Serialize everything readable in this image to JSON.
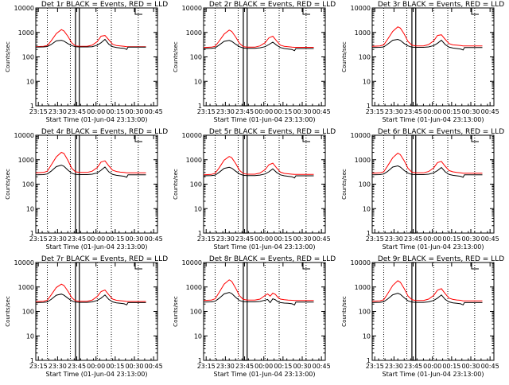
{
  "chart_data": {
    "type": "line",
    "grid": false,
    "x_tick_labels": [
      "23:15",
      "23:30",
      "23:45",
      "00:00",
      "00:15",
      "00:30",
      "00:45"
    ],
    "xlabel": "Start Time (01-Jun-04 23:13:00)",
    "ylabel": "Counts/sec",
    "y_scale": "log",
    "ylim": [
      1,
      10000
    ],
    "y_tick_labels": [
      "1",
      "10",
      "100",
      "1000",
      "10000"
    ],
    "x_minutes_of_ticks": [
      2,
      17,
      32,
      47,
      62,
      77,
      92
    ],
    "xlim_minutes": [
      0,
      95
    ],
    "dotted_lines_minutes": [
      9,
      27,
      48,
      59,
      80
    ],
    "solid_box_minutes": [
      31,
      34
    ],
    "series_colors": {
      "events": "#000000",
      "lld": "#ff0000"
    },
    "panels": [
      {
        "title": "Det 1r BLACK = Events, RED = LLD",
        "x": [
          0,
          6,
          9,
          12,
          16,
          20,
          22,
          25,
          28,
          31,
          34,
          40,
          44,
          48,
          51,
          54,
          57,
          60,
          63,
          66,
          69,
          71,
          72,
          75,
          78,
          81,
          84,
          86
        ],
        "events": [
          250,
          255,
          265,
          320,
          450,
          480,
          440,
          350,
          290,
          260,
          255,
          255,
          260,
          300,
          380,
          520,
          330,
          260,
          240,
          230,
          225,
          200,
          250,
          250,
          250,
          250,
          250,
          250
        ],
        "lld": [
          260,
          270,
          290,
          450,
          900,
          1300,
          1150,
          700,
          380,
          280,
          270,
          270,
          300,
          420,
          700,
          750,
          500,
          330,
          290,
          280,
          270,
          260,
          260,
          260,
          260,
          260,
          260,
          260
        ]
      },
      {
        "title": "Det 2r BLACK = Events, RED = LLD",
        "x": [
          0,
          6,
          9,
          12,
          16,
          20,
          22,
          25,
          28,
          31,
          34,
          40,
          44,
          48,
          51,
          54,
          57,
          60,
          63,
          66,
          69,
          71,
          72,
          75,
          78,
          81,
          84,
          86
        ],
        "events": [
          220,
          225,
          235,
          300,
          430,
          470,
          430,
          330,
          260,
          230,
          225,
          225,
          235,
          260,
          320,
          400,
          300,
          240,
          220,
          210,
          200,
          180,
          220,
          220,
          220,
          220,
          220,
          220
        ],
        "lld": [
          240,
          250,
          270,
          430,
          850,
          1250,
          1100,
          650,
          360,
          260,
          250,
          250,
          280,
          380,
          600,
          700,
          450,
          300,
          270,
          260,
          250,
          245,
          245,
          245,
          245,
          245,
          245,
          245
        ]
      },
      {
        "title": "Det 3r BLACK = Events, RED = LLD",
        "x": [
          0,
          6,
          9,
          12,
          16,
          20,
          22,
          25,
          28,
          31,
          34,
          40,
          44,
          48,
          51,
          54,
          57,
          60,
          63,
          66,
          69,
          71,
          72,
          75,
          78,
          81,
          84,
          86
        ],
        "events": [
          240,
          245,
          255,
          330,
          480,
          520,
          470,
          350,
          280,
          250,
          245,
          245,
          255,
          290,
          360,
          480,
          320,
          250,
          230,
          220,
          210,
          190,
          240,
          240,
          240,
          240,
          240,
          240
        ],
        "lld": [
          270,
          280,
          310,
          520,
          1100,
          1700,
          1500,
          850,
          420,
          300,
          280,
          280,
          320,
          450,
          750,
          800,
          520,
          350,
          310,
          300,
          290,
          280,
          280,
          280,
          280,
          280,
          280,
          280
        ]
      },
      {
        "title": "Det 4r BLACK = Events, RED = LLD",
        "x": [
          0,
          6,
          9,
          12,
          16,
          20,
          22,
          25,
          28,
          31,
          34,
          40,
          44,
          48,
          51,
          54,
          57,
          60,
          63,
          66,
          69,
          71,
          72,
          75,
          78,
          81,
          84,
          86
        ],
        "events": [
          240,
          245,
          260,
          340,
          520,
          600,
          540,
          380,
          280,
          250,
          245,
          245,
          255,
          290,
          370,
          500,
          320,
          250,
          230,
          220,
          210,
          190,
          240,
          240,
          240,
          240,
          240,
          240
        ],
        "lld": [
          290,
          300,
          340,
          600,
          1300,
          2000,
          1800,
          950,
          450,
          320,
          300,
          300,
          340,
          480,
          800,
          900,
          560,
          370,
          330,
          310,
          300,
          290,
          290,
          290,
          290,
          290,
          290,
          290
        ]
      },
      {
        "title": "Det 5r BLACK = Events, RED = LLD",
        "x": [
          0,
          6,
          9,
          12,
          16,
          20,
          22,
          25,
          28,
          31,
          34,
          40,
          44,
          48,
          51,
          54,
          57,
          60,
          63,
          66,
          69,
          71,
          72,
          75,
          78,
          81,
          84,
          86
        ],
        "events": [
          220,
          225,
          235,
          300,
          440,
          490,
          450,
          340,
          260,
          230,
          225,
          225,
          235,
          260,
          320,
          420,
          300,
          240,
          220,
          210,
          200,
          180,
          220,
          220,
          220,
          220,
          220,
          220
        ],
        "lld": [
          240,
          250,
          280,
          450,
          950,
          1350,
          1200,
          700,
          370,
          270,
          255,
          255,
          285,
          390,
          620,
          720,
          460,
          310,
          275,
          265,
          255,
          250,
          250,
          250,
          250,
          250,
          250,
          250
        ]
      },
      {
        "title": "Det 6r BLACK = Events, RED = LLD",
        "x": [
          0,
          6,
          9,
          12,
          16,
          20,
          22,
          25,
          28,
          31,
          34,
          40,
          44,
          48,
          51,
          54,
          57,
          60,
          63,
          66,
          69,
          71,
          72,
          75,
          78,
          81,
          84,
          86
        ],
        "events": [
          240,
          245,
          260,
          330,
          500,
          560,
          500,
          360,
          280,
          250,
          245,
          245,
          255,
          290,
          360,
          480,
          320,
          250,
          230,
          220,
          210,
          190,
          240,
          240,
          240,
          240,
          240,
          240
        ],
        "lld": [
          280,
          290,
          320,
          550,
          1200,
          1850,
          1600,
          900,
          440,
          310,
          290,
          290,
          330,
          460,
          760,
          850,
          540,
          360,
          320,
          300,
          290,
          280,
          280,
          280,
          280,
          280,
          280,
          280
        ]
      },
      {
        "title": "Det 7r BLACK = Events, RED = LLD",
        "x": [
          0,
          6,
          9,
          12,
          16,
          20,
          22,
          25,
          28,
          31,
          34,
          40,
          44,
          48,
          51,
          54,
          57,
          60,
          63,
          66,
          69,
          71,
          72,
          75,
          78,
          81,
          84,
          86
        ],
        "events": [
          230,
          235,
          245,
          310,
          460,
          510,
          460,
          350,
          270,
          240,
          235,
          235,
          245,
          280,
          350,
          470,
          310,
          245,
          225,
          215,
          205,
          185,
          230,
          230,
          230,
          230,
          230,
          230
        ],
        "lld": [
          250,
          260,
          290,
          470,
          950,
          1300,
          1150,
          680,
          370,
          270,
          260,
          260,
          290,
          410,
          650,
          750,
          480,
          320,
          285,
          275,
          265,
          255,
          255,
          255,
          255,
          255,
          255,
          255
        ]
      },
      {
        "title": "Det 8r BLACK = Events, RED = LLD",
        "x": [
          0,
          6,
          9,
          12,
          16,
          20,
          22,
          25,
          28,
          31,
          34,
          40,
          44,
          48,
          50,
          52,
          54,
          56,
          58,
          60,
          63,
          66,
          69,
          71,
          72,
          75,
          78,
          81,
          84,
          86
        ],
        "events": [
          240,
          245,
          260,
          340,
          520,
          600,
          540,
          380,
          280,
          250,
          245,
          245,
          255,
          290,
          310,
          230,
          330,
          300,
          250,
          230,
          220,
          215,
          205,
          185,
          240,
          240,
          240,
          240,
          240,
          240
        ],
        "lld": [
          280,
          290,
          330,
          580,
          1300,
          1950,
          1700,
          900,
          440,
          310,
          290,
          290,
          320,
          450,
          520,
          420,
          560,
          500,
          380,
          320,
          300,
          290,
          285,
          280,
          280,
          280,
          280,
          280,
          280,
          280
        ]
      },
      {
        "title": "Det 9r BLACK = Events, RED = LLD",
        "x": [
          0,
          6,
          9,
          12,
          16,
          20,
          22,
          25,
          28,
          31,
          34,
          40,
          44,
          48,
          51,
          54,
          57,
          60,
          63,
          66,
          69,
          71,
          72,
          75,
          78,
          81,
          84,
          86
        ],
        "events": [
          230,
          235,
          250,
          320,
          480,
          550,
          500,
          360,
          270,
          240,
          235,
          235,
          245,
          280,
          350,
          470,
          310,
          245,
          225,
          215,
          205,
          185,
          230,
          230,
          230,
          230,
          230,
          230
        ],
        "lld": [
          260,
          270,
          300,
          520,
          1150,
          1800,
          1550,
          850,
          420,
          300,
          280,
          280,
          320,
          450,
          740,
          850,
          530,
          350,
          310,
          295,
          285,
          270,
          270,
          270,
          270,
          270,
          270,
          270
        ]
      }
    ]
  }
}
